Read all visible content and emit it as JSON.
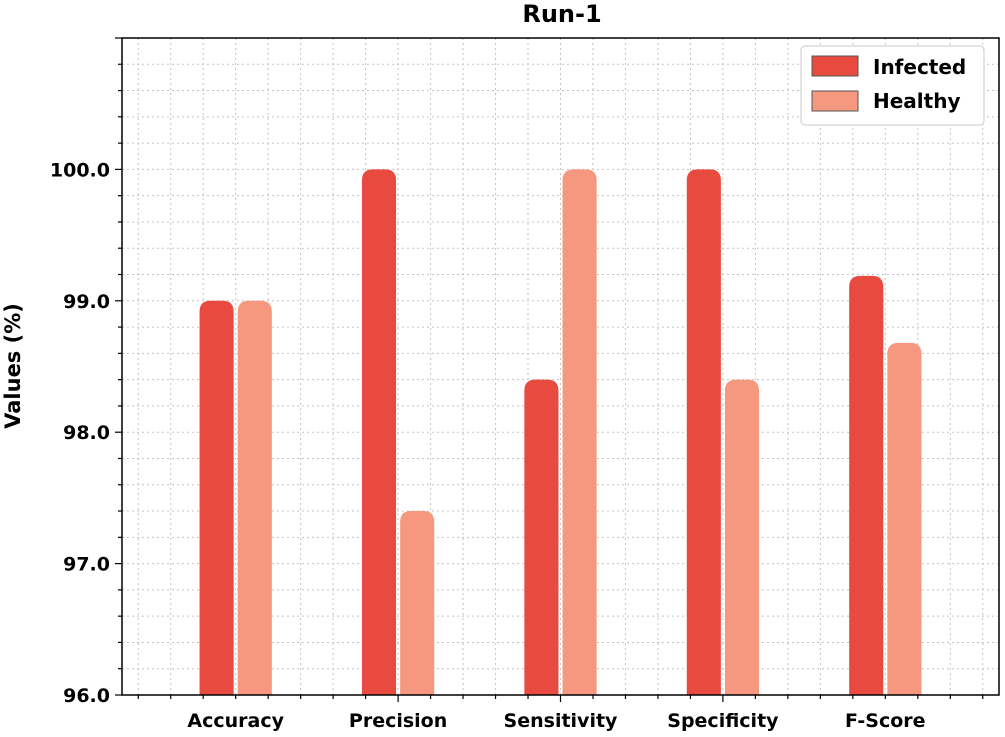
{
  "chart_data": {
    "type": "bar",
    "title": "Run-1",
    "xlabel": "",
    "ylabel": "Values (%)",
    "categories": [
      "Accuracy",
      "Precision",
      "Sensitivity",
      "Specificity",
      "F-Score"
    ],
    "series": [
      {
        "name": "Infected",
        "color": "#e84a3f",
        "values": [
          99.0,
          100.0,
          98.4,
          100.0,
          99.19
        ]
      },
      {
        "name": "Healthy",
        "color": "#f5987f",
        "values": [
          99.0,
          97.4,
          100.0,
          98.4,
          98.68
        ]
      }
    ],
    "ylim": [
      96.0,
      101.0
    ],
    "yticks": [
      "96.0",
      "97.0",
      "98.0",
      "99.0",
      "100.0"
    ],
    "grid": true,
    "legend_position": "top-right"
  }
}
